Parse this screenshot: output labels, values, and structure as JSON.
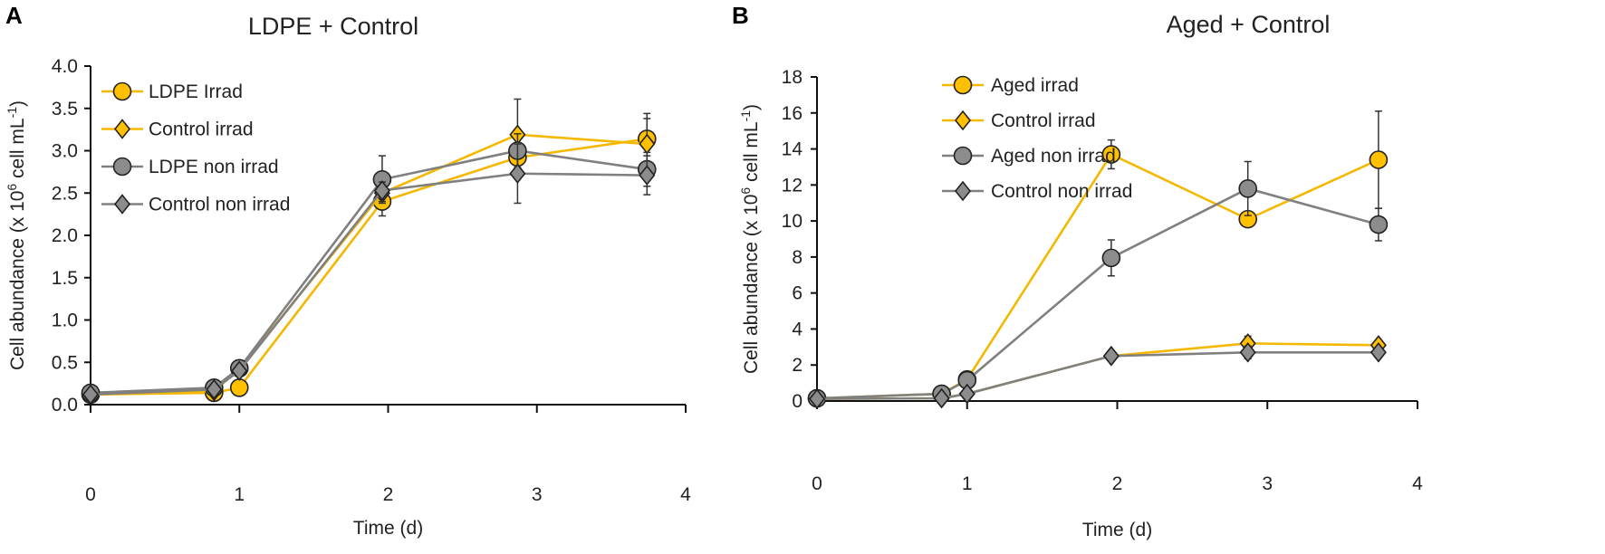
{
  "colors": {
    "irrad": "#F5B800",
    "nonirrad": "#808080",
    "marker_irrad": "#FFC000",
    "marker_nonirrad": "#8C8C8C",
    "outline": "#222222"
  },
  "chart_data": [
    {
      "type": "line",
      "panel_label": "A",
      "title": "LDPE + Control",
      "xlabel": "Time (d)",
      "ylabel": "Cell abundance (x 10^6 cell mL^-1)",
      "ylabel_parts": {
        "pre": "Cell abundance (x 10",
        "sup1": "6",
        "mid": " cell mL",
        "sup2": "-1",
        "post": ")"
      },
      "xlim": [
        0,
        4
      ],
      "ylim": [
        0,
        4.0
      ],
      "xticks": [
        "0",
        "1",
        "2",
        "3",
        "4"
      ],
      "yticks": [
        "0.0",
        "0.5",
        "1.0",
        "1.5",
        "2.0",
        "2.5",
        "3.0",
        "3.5",
        "4.0"
      ],
      "grid": false,
      "legend_position": "top-left",
      "x": [
        0,
        0.83,
        1,
        1.96,
        2.87,
        3.74
      ],
      "series": [
        {
          "name": "LDPE Irrad",
          "color": "irrad",
          "marker": "circle",
          "values": [
            0.12,
            0.14,
            0.2,
            2.4,
            2.92,
            3.14
          ],
          "errors": [
            0,
            0,
            0,
            0.17,
            0.12,
            0.3
          ]
        },
        {
          "name": "Control irrad",
          "color": "irrad",
          "marker": "diamond",
          "values": [
            0.12,
            0.16,
            0.42,
            2.5,
            3.19,
            3.08
          ],
          "errors": [
            0,
            0,
            0,
            0.1,
            0.42,
            0.3
          ]
        },
        {
          "name": "LDPE non irrad",
          "color": "nonirrad",
          "marker": "circle",
          "values": [
            0.14,
            0.2,
            0.43,
            2.66,
            3.0,
            2.78
          ],
          "errors": [
            0,
            0,
            0,
            0.28,
            0.2,
            0.2
          ]
        },
        {
          "name": "Control non irrad",
          "color": "nonirrad",
          "marker": "diamond",
          "values": [
            0.12,
            0.18,
            0.4,
            2.53,
            2.73,
            2.71
          ],
          "errors": [
            0,
            0,
            0,
            0.1,
            0.35,
            0.23
          ]
        }
      ]
    },
    {
      "type": "line",
      "panel_label": "B",
      "title": "Aged + Control",
      "xlabel": "Time (d)",
      "ylabel": "Cell abundance (x 10^6 cell mL^-1)",
      "ylabel_parts": {
        "pre": "Cell abundance (x 10",
        "sup1": "6",
        "mid": " cell mL",
        "sup2": "-1",
        "post": ")"
      },
      "xlim": [
        0,
        4
      ],
      "ylim": [
        0,
        18
      ],
      "xticks": [
        "0",
        "1",
        "2",
        "3",
        "4"
      ],
      "yticks": [
        "0",
        "2",
        "4",
        "6",
        "8",
        "10",
        "12",
        "14",
        "16",
        "18"
      ],
      "grid": false,
      "legend_position": "top-left",
      "x": [
        0,
        0.83,
        1,
        1.96,
        2.87,
        3.74
      ],
      "series": [
        {
          "name": "Aged irrad",
          "color": "irrad",
          "marker": "circle",
          "values": [
            0.15,
            0.4,
            1.2,
            13.7,
            10.1,
            13.4
          ],
          "errors": [
            0,
            0,
            0,
            0.8,
            0.3,
            2.7
          ]
        },
        {
          "name": "Control irrad",
          "color": "irrad",
          "marker": "diamond",
          "values": [
            0.12,
            0.15,
            0.4,
            2.5,
            3.2,
            3.1
          ],
          "errors": [
            0,
            0,
            0,
            0.1,
            0.4,
            0.2
          ]
        },
        {
          "name": "Aged non irrad",
          "color": "nonirrad",
          "marker": "circle",
          "values": [
            0.15,
            0.4,
            1.15,
            7.95,
            11.8,
            9.8
          ],
          "errors": [
            0,
            0,
            0,
            1.0,
            1.5,
            0.9
          ]
        },
        {
          "name": "Control non irrad",
          "color": "nonirrad",
          "marker": "diamond",
          "values": [
            0.12,
            0.15,
            0.4,
            2.5,
            2.7,
            2.7
          ],
          "errors": [
            0,
            0,
            0,
            0.1,
            0.35,
            0.1
          ]
        }
      ]
    }
  ]
}
